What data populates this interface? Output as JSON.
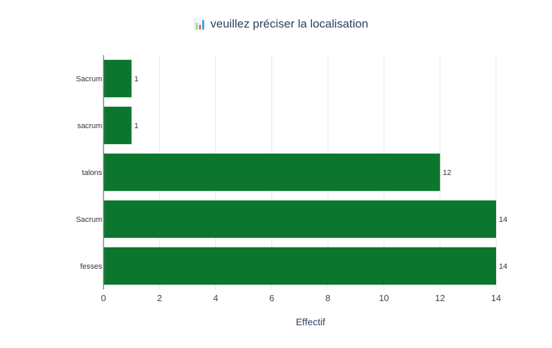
{
  "chart_data": {
    "type": "bar",
    "orientation": "horizontal",
    "title_icon": "📊",
    "title": "veuillez préciser la localisation",
    "xlabel": "Effectif",
    "ylabel": "",
    "xlim": [
      0,
      14
    ],
    "xticks": [
      0,
      2,
      4,
      6,
      8,
      10,
      12,
      14
    ],
    "grid": true,
    "categories": [
      "Sacrum",
      "sacrum",
      "talons",
      "Sacrum",
      "fesses"
    ],
    "values": [
      1,
      1,
      12,
      14,
      14
    ],
    "data_labels": [
      "1",
      "1",
      "12",
      "14",
      "14"
    ],
    "bar_color": "#0d762e"
  }
}
